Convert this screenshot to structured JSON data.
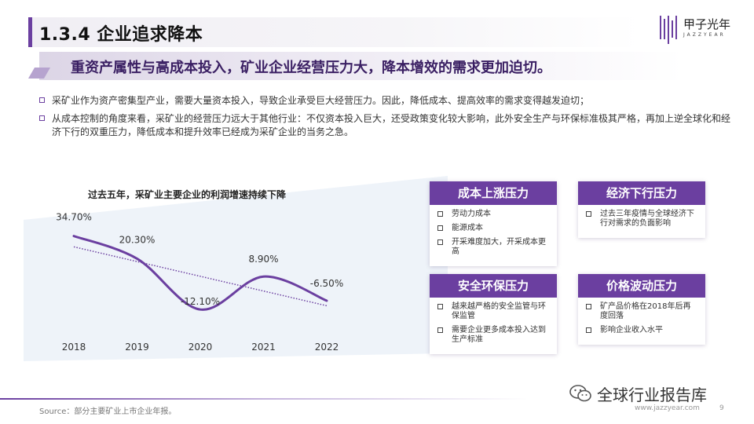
{
  "header": {
    "title": "1.3.4 企业追求降本",
    "logo_name": "甲子光年",
    "logo_sub": "JAZZYEAR"
  },
  "subtitle": "重资产属性与高成本投入，矿业企业经营压力大，降本增效的需求更加迫切。",
  "bullets": [
    "采矿业作为资产密集型产业，需要大量资本投入，导致企业承受巨大经营压力。因此，降低成本、提高效率的需求变得越发迫切；",
    "从成本控制的角度来看，采矿业的经营压力远大于其他行业：不仅资本投入巨大，还受政策变化较大影响，此外安全生产与环保标准极其严格，再加上逆全球化和经济下行的双重压力，降低成本和提升效率已经成为采矿企业的当务之急。"
  ],
  "chart_data": {
    "type": "line",
    "title": "过去五年，采矿业主要企业的利润增速持续下降",
    "categories": [
      "2018",
      "2019",
      "2020",
      "2021",
      "2022"
    ],
    "series": [
      {
        "values": [
          34.7,
          20.3,
          -12.1,
          8.9,
          -6.5
        ]
      }
    ],
    "value_labels": [
      "34.70%",
      "20.30%",
      "-12.10%",
      "8.90%",
      "-6.50%"
    ],
    "trendline": "linear, dotted",
    "grid": false,
    "color": "#6b3fa0"
  },
  "cards": [
    {
      "title": "成本上涨压力",
      "items": [
        "劳动力成本",
        "能源成本",
        "开采难度加大，开采成本更高"
      ]
    },
    {
      "title": "经济下行压力",
      "items": [
        "过去三年疫情与全球经济下行对需求的负面影响"
      ]
    },
    {
      "title": "安全环保压力",
      "items": [
        "越来越严格的安全监管与环保监管",
        "需要企业更多成本投入达到生产标准"
      ]
    },
    {
      "title": "价格波动压力",
      "items": [
        "矿产品价格在2018年后再度回落",
        "影响企业收入水平"
      ]
    }
  ],
  "footer": {
    "source": "Source：部分主要矿业上市企业年报。",
    "url": "www.jazzyear.com",
    "page": "9",
    "wechat": "全球行业报告库"
  },
  "colors": {
    "accent": "#6b3fa0",
    "line": "#6b3fa0"
  }
}
